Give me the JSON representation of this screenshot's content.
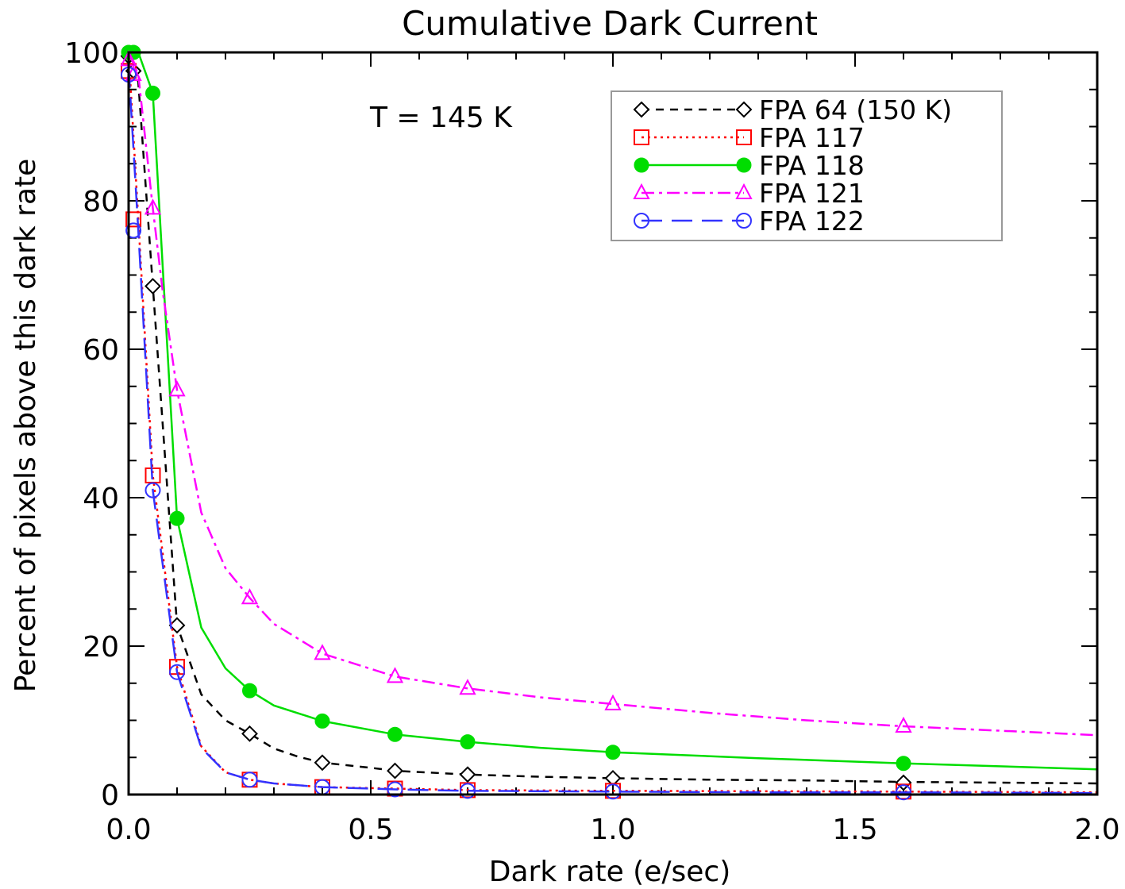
{
  "chart_data": {
    "type": "line",
    "title": "Cumulative Dark Current",
    "xlabel": "Dark rate (e/sec)",
    "ylabel": "Percent of pixels above this dark rate",
    "annotation": "T = 145 K",
    "xlim": [
      0.0,
      2.0
    ],
    "ylim": [
      0,
      100
    ],
    "x_ticks": [
      "0.0",
      "0.5",
      "1.0",
      "1.5",
      "2.0"
    ],
    "y_ticks": [
      "0",
      "20",
      "40",
      "60",
      "80",
      "100"
    ],
    "x_tick_values": [
      0.0,
      0.5,
      1.0,
      1.5,
      2.0
    ],
    "y_tick_values": [
      0,
      20,
      40,
      60,
      80,
      100
    ],
    "legend_position": "top-right",
    "marker_x": [
      0.0,
      0.01,
      0.05,
      0.1,
      0.25,
      0.4,
      0.55,
      0.7,
      1.0,
      1.6
    ],
    "series": [
      {
        "name": "FPA 64 (150 K)",
        "color": "#000000",
        "dash": "dashed",
        "marker": "diamond",
        "curve_x": [
          0.0,
          0.02,
          0.05,
          0.1,
          0.15,
          0.2,
          0.25,
          0.3,
          0.35,
          0.4,
          0.5,
          0.55,
          0.7,
          0.85,
          1.0,
          1.2,
          1.4,
          1.6,
          1.8,
          2.0
        ],
        "curve_y": [
          100,
          96,
          68.5,
          22.8,
          13.5,
          10,
          8.2,
          6.2,
          5.1,
          4.3,
          3.6,
          3.2,
          2.7,
          2.4,
          2.2,
          2.0,
          1.9,
          1.7,
          1.6,
          1.5
        ],
        "marker_y": [
          99.5,
          97.5,
          68.5,
          22.8,
          8.2,
          4.3,
          3.2,
          2.7,
          2.2,
          1.6
        ]
      },
      {
        "name": "FPA 117",
        "color": "#ff0000",
        "dash": "dotted",
        "marker": "square",
        "curve_x": [
          0.0,
          0.02,
          0.05,
          0.1,
          0.15,
          0.2,
          0.25,
          0.3,
          0.4,
          0.55,
          0.7,
          1.0,
          1.3,
          1.6,
          2.0
        ],
        "curve_y": [
          100,
          77.5,
          43,
          17.2,
          6.5,
          3,
          2.0,
          1.5,
          1.0,
          0.8,
          0.6,
          0.5,
          0.45,
          0.4,
          0.3
        ],
        "marker_y": [
          97.5,
          77.5,
          43,
          17.2,
          2.0,
          1.0,
          0.8,
          0.6,
          0.5,
          0.4
        ]
      },
      {
        "name": "FPA 118",
        "color": "#00dd00",
        "dash": "solid",
        "marker": "filled-circle",
        "curve_x": [
          0.0,
          0.02,
          0.05,
          0.1,
          0.15,
          0.2,
          0.25,
          0.3,
          0.4,
          0.55,
          0.7,
          0.85,
          1.0,
          1.3,
          1.6,
          2.0
        ],
        "curve_y": [
          100,
          100,
          94.5,
          37.2,
          22.5,
          17,
          14.0,
          12,
          9.9,
          8.1,
          7.1,
          6.3,
          5.7,
          4.9,
          4.2,
          3.4
        ],
        "marker_y": [
          100,
          100,
          94.5,
          37.2,
          14.0,
          9.9,
          8.1,
          7.1,
          5.7,
          4.2
        ]
      },
      {
        "name": "FPA 121",
        "color": "#ff00ff",
        "dash": "dash-dot",
        "marker": "triangle",
        "curve_x": [
          0.0,
          0.02,
          0.05,
          0.07,
          0.1,
          0.15,
          0.2,
          0.25,
          0.3,
          0.4,
          0.55,
          0.7,
          0.85,
          1.0,
          1.2,
          1.4,
          1.6,
          1.8,
          2.0
        ],
        "curve_y": [
          100,
          97,
          79,
          68,
          54.5,
          38,
          30.5,
          26.5,
          23,
          19.0,
          15.9,
          14.3,
          13.1,
          12.2,
          11,
          10,
          9.2,
          8.6,
          8.0
        ],
        "marker_y": [
          99,
          97,
          79,
          54.5,
          26.5,
          19.0,
          15.9,
          14.3,
          12.2,
          9.2
        ]
      },
      {
        "name": "FPA 122",
        "color": "#3333ff",
        "dash": "long-dash",
        "marker": "circle",
        "curve_x": [
          0.0,
          0.02,
          0.05,
          0.1,
          0.15,
          0.2,
          0.25,
          0.3,
          0.4,
          0.55,
          0.7,
          1.0,
          1.3,
          1.6,
          2.0
        ],
        "curve_y": [
          98,
          76,
          41,
          16.5,
          6.3,
          3,
          2.0,
          1.5,
          1.0,
          0.7,
          0.5,
          0.4,
          0.3,
          0.3,
          0.2
        ],
        "marker_y": [
          97,
          76,
          41,
          16.5,
          2.0,
          1.0,
          0.7,
          0.5,
          0.4,
          0.3
        ]
      }
    ]
  }
}
